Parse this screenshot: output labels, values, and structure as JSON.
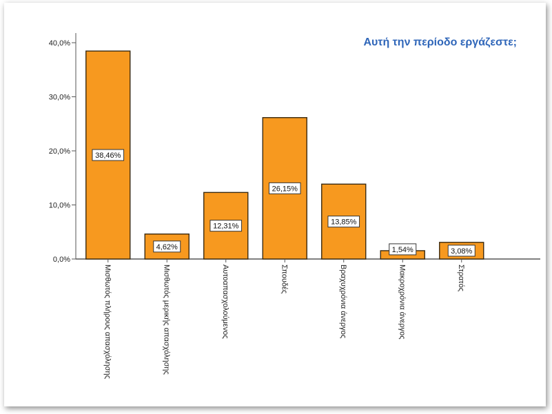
{
  "chart_data": {
    "type": "bar",
    "title": "Αυτή την περίοδο εργάζεστε;",
    "xlabel": "",
    "ylabel": "",
    "categories": [
      "Μισθωτός πλήρους απασχόλησης",
      "Μισθωτός μερικής απασχόλησης",
      "Αυτοαπασχολούμενος",
      "Σπουδές",
      "Βραχυχρόνια άνεργος",
      "Μακροχρόνια άνεργος",
      "Στρατός"
    ],
    "values": [
      38.46,
      4.62,
      12.31,
      26.15,
      13.85,
      1.54,
      3.08
    ],
    "data_labels": [
      "38,46%",
      "4,62%",
      "12,31%",
      "26,15%",
      "13,85%",
      "1,54%",
      "3,08%"
    ],
    "ylim": [
      0,
      40
    ],
    "yticks": [
      0,
      10,
      20,
      30,
      40
    ],
    "ytick_labels": [
      "0,0%",
      "10,0%",
      "20,0%",
      "30,0%",
      "40,0%"
    ],
    "grid": false,
    "colors": {
      "bar": "#f7991f",
      "bar_stroke": "#3a2a10",
      "title": "#2f66b9",
      "axis": "#555555"
    }
  }
}
